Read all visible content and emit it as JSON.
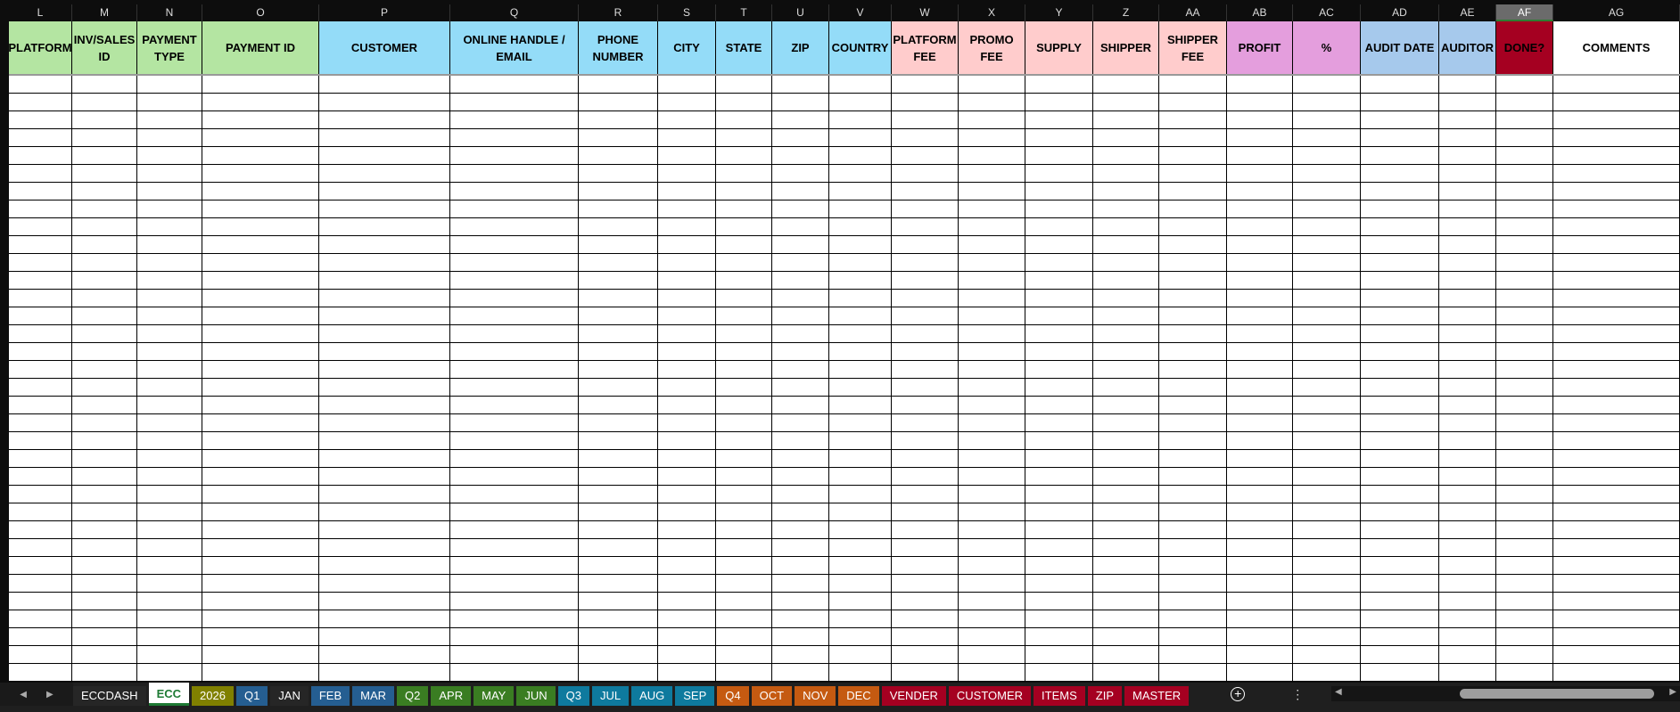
{
  "columns": [
    {
      "letter": "L",
      "label": "PLATFORM",
      "color": "#b4e5a2",
      "w": 71
    },
    {
      "letter": "M",
      "label": "INV/SALES ID",
      "color": "#b4e5a2",
      "w": 73
    },
    {
      "letter": "N",
      "label": "PAYMENT TYPE",
      "color": "#b4e5a2",
      "w": 73
    },
    {
      "letter": "O",
      "label": "PAYMENT ID",
      "color": "#b4e5a2",
      "w": 131
    },
    {
      "letter": "P",
      "label": "CUSTOMER",
      "color": "#94dcf8",
      "w": 147
    },
    {
      "letter": "Q",
      "label": "ONLINE HANDLE / EMAIL",
      "color": "#94dcf8",
      "w": 144
    },
    {
      "letter": "R",
      "label": "PHONE NUMBER",
      "color": "#94dcf8",
      "w": 89
    },
    {
      "letter": "S",
      "label": "CITY",
      "color": "#94dcf8",
      "w": 65
    },
    {
      "letter": "T",
      "label": "STATE",
      "color": "#94dcf8",
      "w": 63
    },
    {
      "letter": "U",
      "label": "ZIP",
      "color": "#94dcf8",
      "w": 64
    },
    {
      "letter": "V",
      "label": "COUNTRY",
      "color": "#94dcf8",
      "w": 70
    },
    {
      "letter": "W",
      "label": "PLATFORM FEE",
      "color": "#ffcccc",
      "w": 75
    },
    {
      "letter": "X",
      "label": "PROMO FEE",
      "color": "#ffcccc",
      "w": 75
    },
    {
      "letter": "Y",
      "label": "SUPPLY",
      "color": "#ffcccc",
      "w": 76
    },
    {
      "letter": "Z",
      "label": "SHIPPER",
      "color": "#ffcccc",
      "w": 74
    },
    {
      "letter": "AA",
      "label": "SHIPPER FEE",
      "color": "#ffcccc",
      "w": 76
    },
    {
      "letter": "AB",
      "label": "PROFIT",
      "color": "#e49edd",
      "w": 74
    },
    {
      "letter": "AC",
      "label": "%",
      "color": "#e49edd",
      "w": 76
    },
    {
      "letter": "AD",
      "label": "AUDIT DATE",
      "color": "#a6c9ec",
      "w": 88
    },
    {
      "letter": "AE",
      "label": "AUDITOR",
      "color": "#a6c9ec",
      "w": 64
    },
    {
      "letter": "AF",
      "label": "DONE?",
      "color": "#a50021",
      "w": 64,
      "selected": true
    },
    {
      "letter": "AG",
      "label": "COMMENTS",
      "color": "#ffffff",
      "w": 142
    }
  ],
  "tabs": [
    {
      "label": "ECCDASH",
      "color": "#262626"
    },
    {
      "label": "ECC",
      "color": "#ffffff",
      "active": true
    },
    {
      "label": "2026",
      "color": "#808000"
    },
    {
      "label": "Q1",
      "color": "#255e91"
    },
    {
      "label": "JAN",
      "color": "#262626"
    },
    {
      "label": "FEB",
      "color": "#255e91"
    },
    {
      "label": "MAR",
      "color": "#255e91"
    },
    {
      "label": "Q2",
      "color": "#3a7d22"
    },
    {
      "label": "APR",
      "color": "#3a7d22"
    },
    {
      "label": "MAY",
      "color": "#3a7d22"
    },
    {
      "label": "JUN",
      "color": "#3a7d22"
    },
    {
      "label": "Q3",
      "color": "#0e7a9e"
    },
    {
      "label": "JUL",
      "color": "#0e7a9e"
    },
    {
      "label": "AUG",
      "color": "#0e7a9e"
    },
    {
      "label": "SEP",
      "color": "#0e7a9e"
    },
    {
      "label": "Q4",
      "color": "#c55a11"
    },
    {
      "label": "OCT",
      "color": "#c55a11"
    },
    {
      "label": "NOV",
      "color": "#c55a11"
    },
    {
      "label": "DEC",
      "color": "#c55a11"
    },
    {
      "label": "VENDER",
      "color": "#a50021"
    },
    {
      "label": "CUSTOMER",
      "color": "#a50021"
    },
    {
      "label": "ITEMS",
      "color": "#a50021"
    },
    {
      "label": "ZIP",
      "color": "#a50021"
    },
    {
      "label": "MASTER",
      "color": "#a50021"
    }
  ],
  "icons": {
    "prev": "chevron-left-icon",
    "next": "chevron-right-icon",
    "add": "plus-circle-icon",
    "more": "vertical-ellipsis-icon"
  },
  "more_glyph": "⋮"
}
